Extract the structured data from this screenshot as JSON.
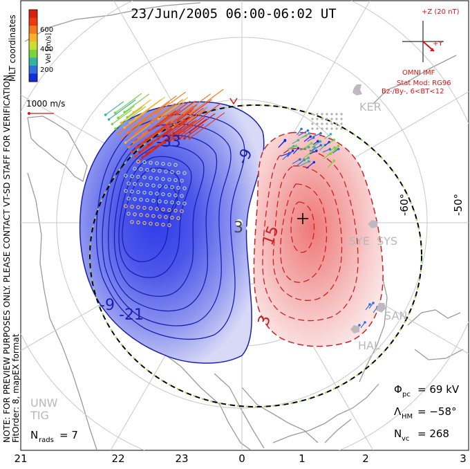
{
  "title": "23/Jun/2005 06:00-06:02 UT",
  "side_note": {
    "line1": "NOTE: FOR PREVIEW PURPOSES ONLY. PLEASE CONTACT VT-SD STAFF FOR VERIFICATION.",
    "line2": "FitOrder: 8, mapEX format"
  },
  "colorbar": {
    "coord_label": "MLT coordinates",
    "unit_label": "Vel [m/s]",
    "ticks": [
      "200",
      "400",
      "600"
    ],
    "colors": [
      "#1a2bd8",
      "#2f6fe0",
      "#32b4a0",
      "#7ad23c",
      "#c8e032",
      "#f7b42a",
      "#f47a1e",
      "#e83a14",
      "#d71f10"
    ]
  },
  "scale_vector": {
    "label": "1000 m/s",
    "color": "#d01818"
  },
  "imf": {
    "z_label": "+Z (20 nT)",
    "y_label": "+Y",
    "source": "OMNI IMF",
    "model_line1": "Stat Mod: RG96",
    "model_line2": "Bz-/By-, 6<BT<12",
    "color": "#e01010"
  },
  "stations": [
    "KER",
    "SYE",
    "SYS",
    "SAN",
    "HAL",
    "UNW",
    "TIG"
  ],
  "latitude_labels": [
    "-60°",
    "-50°"
  ],
  "contours": {
    "negative_labels": [
      "-33",
      "-9",
      "-9",
      "-21"
    ],
    "positive_labels": [
      "3",
      "15",
      "3"
    ],
    "negative_color": "#1a1fb0",
    "positive_color": "#cc2020",
    "negative_fill": "#3b48e8",
    "positive_fill": "#f08484"
  },
  "stats": {
    "phi_pc": {
      "label": "Φ",
      "sub": "pc",
      "value": "= 69 kV"
    },
    "lambda_hm": {
      "label": "Λ",
      "sub": "HM",
      "value": "= −58°"
    },
    "n_vc": {
      "label": "N",
      "sub": "vc",
      "value": "= 268"
    },
    "n_rads": {
      "label": "N",
      "sub": "rads",
      "value": "= 7"
    }
  },
  "mlt_axis": [
    "21",
    "22",
    "23",
    "0",
    "1",
    "2",
    "3"
  ]
}
